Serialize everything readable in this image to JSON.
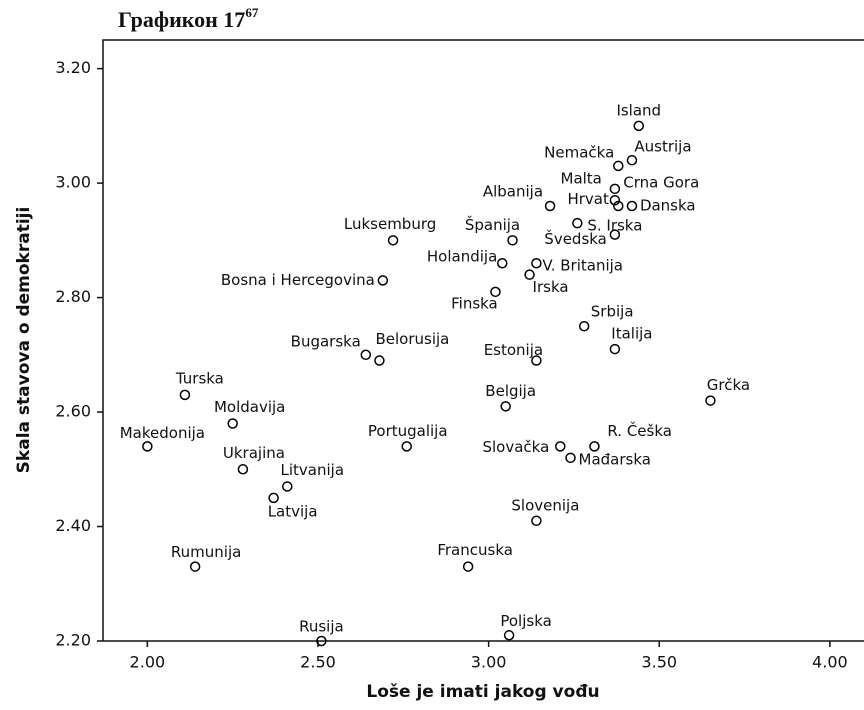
{
  "chart_data": {
    "type": "scatter",
    "title": "Графикон 17",
    "title_superscript": "67",
    "x_label": "Loše je imati jakog vođu",
    "y_label": "Skala stavova o demokratiji",
    "labels": [
      "Island",
      "Austrija",
      "Nemačka",
      "Malta",
      "Crna Gora",
      "Hrvat",
      "Danska",
      "Albanija",
      "S. Irska",
      "Švedska",
      "Španija",
      "Luksemburg",
      "Holandija",
      "V. Britanija",
      "Irska",
      "Bosna i Hercegovina",
      "Finska",
      "Srbija",
      "Italija",
      "Estonija",
      "Bugarska",
      "Belorusija",
      "Turska",
      "Grčka",
      "Belgija",
      "Moldavija",
      "Makedonija",
      "Portugalija",
      "Slovačka",
      "R. Češka",
      "Mađarska",
      "Ukrajina",
      "Litvanija",
      "Latvija",
      "Slovenija",
      "Rumunija",
      "Francuska",
      "Rusija",
      "Poljska"
    ],
    "x": [
      3.44,
      3.42,
      3.38,
      3.37,
      3.38,
      3.37,
      3.42,
      3.18,
      3.26,
      3.37,
      3.07,
      2.72,
      3.04,
      3.14,
      3.12,
      2.69,
      3.02,
      3.28,
      3.37,
      3.14,
      2.64,
      2.68,
      2.11,
      3.65,
      3.05,
      2.25,
      2.0,
      2.76,
      3.21,
      3.31,
      3.24,
      2.28,
      2.41,
      2.37,
      3.14,
      2.14,
      2.94,
      2.51,
      3.06
    ],
    "y": [
      3.1,
      3.04,
      3.03,
      2.99,
      2.96,
      2.97,
      2.96,
      2.96,
      2.93,
      2.91,
      2.9,
      2.9,
      2.86,
      2.86,
      2.84,
      2.83,
      2.81,
      2.75,
      2.71,
      2.69,
      2.7,
      2.69,
      2.63,
      2.62,
      2.61,
      2.58,
      2.54,
      2.54,
      2.54,
      2.54,
      2.52,
      2.5,
      2.47,
      2.45,
      2.41,
      2.33,
      2.33,
      2.2,
      2.21
    ],
    "xlim": [
      1.87,
      4.1
    ],
    "ylim": [
      2.2,
      3.25
    ],
    "xticks": [
      {
        "value": 2,
        "label": "2.00"
      },
      {
        "value": 2.5,
        "label": "2.50"
      },
      {
        "value": 3,
        "label": "3.00"
      },
      {
        "value": 3.5,
        "label": "3.50"
      },
      {
        "value": 4,
        "label": "4.00"
      }
    ],
    "yticks": [
      {
        "value": 2.2,
        "label": "2.20"
      },
      {
        "value": 2.4,
        "label": "2.40"
      },
      {
        "value": 2.6,
        "label": "2.60"
      },
      {
        "value": 2.8,
        "label": "2.80"
      },
      {
        "value": 3,
        "label": "3.00"
      },
      {
        "value": 3.2,
        "label": "3.20"
      }
    ],
    "color": "#000000"
  }
}
